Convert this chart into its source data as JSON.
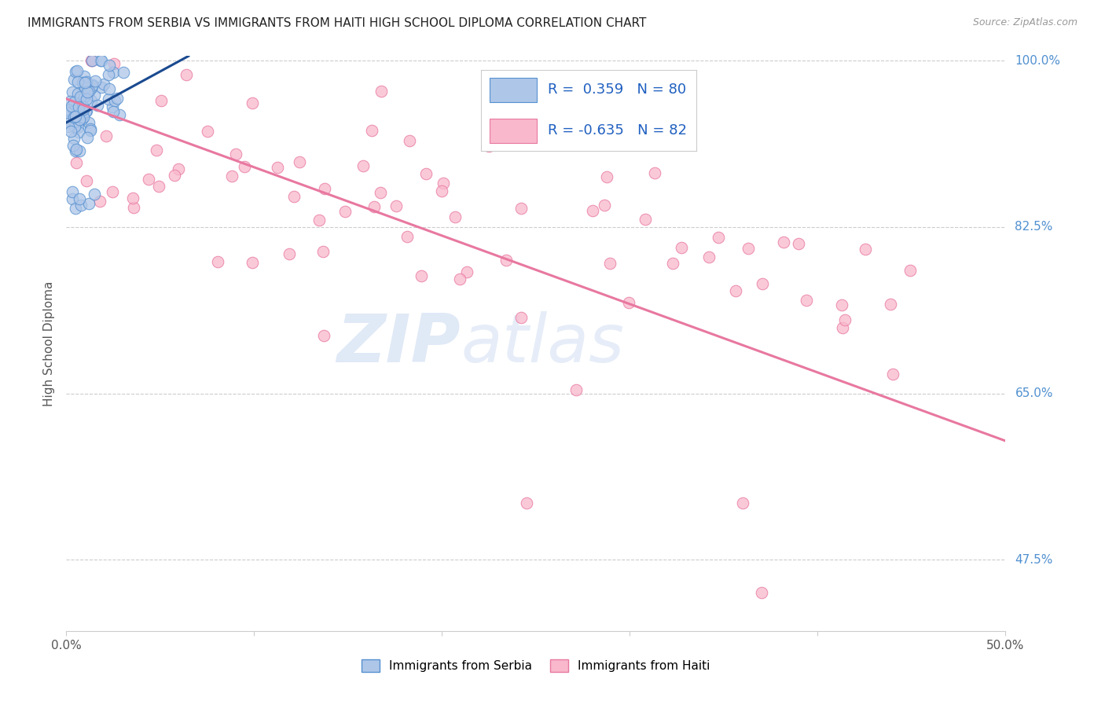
{
  "title": "IMMIGRANTS FROM SERBIA VS IMMIGRANTS FROM HAITI HIGH SCHOOL DIPLOMA CORRELATION CHART",
  "source": "Source: ZipAtlas.com",
  "ylabel": "High School Diploma",
  "x_min": 0.0,
  "x_max": 0.5,
  "y_min": 0.4,
  "y_max": 1.005,
  "y_tick_labels": [
    "100.0%",
    "82.5%",
    "65.0%",
    "47.5%"
  ],
  "y_tick_values": [
    1.0,
    0.825,
    0.65,
    0.475
  ],
  "serbia_color": "#aec6e8",
  "serbia_edge_color": "#5590d0",
  "haiti_color": "#f9b8cc",
  "haiti_edge_color": "#e878a0",
  "trend_serbia_color": "#1a4a90",
  "trend_haiti_color": "#e878a0",
  "legend_R_serbia": "0.359",
  "legend_N_serbia": "80",
  "legend_R_haiti": "-0.635",
  "legend_N_haiti": "82",
  "watermark_zip": "ZIP",
  "watermark_atlas": "atlas",
  "watermark_color_zip": "#c8d8f0",
  "watermark_color_atlas": "#c8d8f0"
}
